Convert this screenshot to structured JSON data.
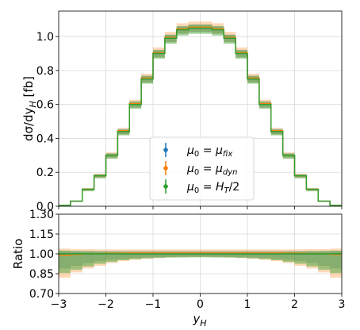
{
  "chart_data": [
    {
      "panel": "main",
      "type": "line",
      "step": true,
      "ylabel": "dσ/dy_H  [fb]",
      "xlim": [
        -3,
        3
      ],
      "ylim": [
        0,
        1.15
      ],
      "yticks": [
        0.0,
        0.2,
        0.4,
        0.6,
        0.8,
        1.0
      ],
      "ytick_labels": [
        "0.0",
        "0.2",
        "0.4",
        "0.6",
        "0.8",
        "1.0"
      ],
      "grid": true,
      "legend_position": "center-bottom",
      "bin_edges": [
        -3.0,
        -2.75,
        -2.5,
        -2.25,
        -2.0,
        -1.75,
        -1.5,
        -1.25,
        -1.0,
        -0.75,
        -0.5,
        -0.25,
        0.0,
        0.25,
        0.5,
        0.75,
        1.0,
        1.25,
        1.5,
        1.75,
        2.0,
        2.25,
        2.5,
        2.75,
        3.0
      ],
      "series": [
        {
          "name": "μ0 = μfix",
          "color": "#1f77b4",
          "values": [
            0.005,
            0.03,
            0.1,
            0.18,
            0.3,
            0.44,
            0.6,
            0.75,
            0.9,
            0.99,
            1.04,
            1.05,
            1.05,
            1.04,
            0.99,
            0.9,
            0.75,
            0.6,
            0.44,
            0.3,
            0.18,
            0.1,
            0.03,
            0.005
          ],
          "band_low": [
            0.004,
            0.028,
            0.095,
            0.172,
            0.288,
            0.425,
            0.582,
            0.73,
            0.878,
            0.968,
            1.018,
            1.028,
            1.028,
            1.018,
            0.968,
            0.878,
            0.73,
            0.582,
            0.425,
            0.288,
            0.172,
            0.095,
            0.028,
            0.004
          ],
          "band_high": [
            0.006,
            0.032,
            0.105,
            0.188,
            0.312,
            0.455,
            0.618,
            0.77,
            0.922,
            1.012,
            1.062,
            1.072,
            1.072,
            1.062,
            1.012,
            0.922,
            0.77,
            0.618,
            0.455,
            0.312,
            0.188,
            0.105,
            0.032,
            0.006
          ]
        },
        {
          "name": "μ0 = μdyn",
          "color": "#ff7f0e",
          "values": [
            0.005,
            0.03,
            0.1,
            0.18,
            0.3,
            0.445,
            0.605,
            0.755,
            0.905,
            0.995,
            1.045,
            1.055,
            1.055,
            1.045,
            0.995,
            0.905,
            0.755,
            0.605,
            0.445,
            0.3,
            0.18,
            0.1,
            0.03,
            0.005
          ],
          "band_low": [
            0.004,
            0.026,
            0.09,
            0.168,
            0.283,
            0.422,
            0.58,
            0.728,
            0.876,
            0.966,
            1.016,
            1.026,
            1.026,
            1.016,
            0.966,
            0.876,
            0.728,
            0.58,
            0.422,
            0.283,
            0.168,
            0.09,
            0.026,
            0.004
          ],
          "band_high": [
            0.006,
            0.033,
            0.108,
            0.192,
            0.318,
            0.462,
            0.628,
            0.782,
            0.936,
            1.028,
            1.078,
            1.088,
            1.088,
            1.078,
            1.028,
            0.936,
            0.782,
            0.628,
            0.462,
            0.318,
            0.192,
            0.108,
            0.033,
            0.006
          ]
        },
        {
          "name": "μ0 = HT/2",
          "color": "#2ca02c",
          "values": [
            0.005,
            0.03,
            0.1,
            0.18,
            0.3,
            0.44,
            0.6,
            0.75,
            0.9,
            0.99,
            1.04,
            1.05,
            1.05,
            1.04,
            0.99,
            0.9,
            0.75,
            0.6,
            0.44,
            0.3,
            0.18,
            0.1,
            0.03,
            0.005
          ],
          "band_low": [
            0.004,
            0.026,
            0.088,
            0.165,
            0.28,
            0.418,
            0.575,
            0.722,
            0.87,
            0.958,
            1.006,
            1.016,
            1.016,
            1.006,
            0.958,
            0.87,
            0.722,
            0.575,
            0.418,
            0.28,
            0.165,
            0.088,
            0.026,
            0.004
          ],
          "band_high": [
            0.006,
            0.032,
            0.104,
            0.186,
            0.31,
            0.452,
            0.616,
            0.768,
            0.92,
            1.01,
            1.06,
            1.07,
            1.07,
            1.06,
            1.01,
            0.92,
            0.768,
            0.616,
            0.452,
            0.31,
            0.186,
            0.104,
            0.032,
            0.006
          ]
        }
      ]
    },
    {
      "panel": "ratio",
      "type": "area",
      "step": true,
      "xlabel": "y_H",
      "ylabel": "Ratio",
      "xlim": [
        -3,
        3
      ],
      "ylim": [
        0.7,
        1.3
      ],
      "xticks": [
        -3,
        -2,
        -1,
        0,
        1,
        2,
        3
      ],
      "xtick_labels": [
        "−3",
        "−2",
        "−1",
        "0",
        "1",
        "2",
        "3"
      ],
      "yticks": [
        0.7,
        0.85,
        1.0,
        1.15,
        1.3
      ],
      "ytick_labels": [
        "0.70",
        "0.85",
        "1.00",
        "1.15",
        "1.30"
      ],
      "grid": true,
      "bin_edges": [
        -3.0,
        -2.75,
        -2.5,
        -2.25,
        -2.0,
        -1.75,
        -1.5,
        -1.25,
        -1.0,
        -0.75,
        -0.5,
        -0.25,
        0.0,
        0.25,
        0.5,
        0.75,
        1.0,
        1.25,
        1.5,
        1.75,
        2.0,
        2.25,
        2.5,
        2.75,
        3.0
      ],
      "series": [
        {
          "name": "μ0 = μfix",
          "color": "#1f77b4",
          "values": [
            1.0,
            1.0,
            1.0,
            1.0,
            1.0,
            1.0,
            1.0,
            1.0,
            1.0,
            1.0,
            1.0,
            1.0,
            1.0,
            1.0,
            1.0,
            1.0,
            1.0,
            1.0,
            1.0,
            1.0,
            1.0,
            1.0,
            1.0,
            1.0
          ],
          "band_low": [
            0.89,
            0.91,
            0.93,
            0.945,
            0.955,
            0.962,
            0.968,
            0.972,
            0.975,
            0.977,
            0.978,
            0.979,
            0.979,
            0.978,
            0.977,
            0.975,
            0.972,
            0.968,
            0.962,
            0.955,
            0.945,
            0.93,
            0.91,
            0.89
          ],
          "band_high": [
            1.02,
            1.02,
            1.021,
            1.021,
            1.022,
            1.022,
            1.022,
            1.022,
            1.022,
            1.022,
            1.022,
            1.022,
            1.022,
            1.022,
            1.022,
            1.022,
            1.022,
            1.022,
            1.022,
            1.022,
            1.021,
            1.021,
            1.02,
            1.02
          ]
        },
        {
          "name": "μ0 = μdyn",
          "color": "#ff7f0e",
          "values": [
            0.99,
            0.995,
            1.0,
            1.002,
            1.004,
            1.005,
            1.006,
            1.006,
            1.006,
            1.006,
            1.006,
            1.006,
            1.006,
            1.006,
            1.006,
            1.006,
            1.006,
            1.006,
            1.006,
            1.005,
            1.004,
            1.002,
            1.0,
            0.995
          ],
          "band_low": [
            0.82,
            0.86,
            0.89,
            0.91,
            0.93,
            0.945,
            0.955,
            0.962,
            0.968,
            0.972,
            0.974,
            0.975,
            0.975,
            0.974,
            0.972,
            0.968,
            0.962,
            0.955,
            0.945,
            0.93,
            0.91,
            0.89,
            0.86,
            0.82
          ],
          "band_high": [
            1.04,
            1.035,
            1.035,
            1.034,
            1.034,
            1.034,
            1.034,
            1.034,
            1.034,
            1.034,
            1.034,
            1.034,
            1.034,
            1.034,
            1.034,
            1.034,
            1.034,
            1.034,
            1.034,
            1.034,
            1.034,
            1.035,
            1.035,
            1.04
          ]
        },
        {
          "name": "μ0 = HT/2",
          "color": "#2ca02c",
          "values": [
            1.0,
            1.0,
            1.0,
            1.0,
            1.0,
            1.0,
            1.0,
            1.0,
            1.0,
            1.0,
            1.0,
            1.0,
            1.0,
            1.0,
            1.0,
            1.0,
            1.0,
            1.0,
            1.0,
            1.0,
            1.0,
            1.0,
            1.0,
            1.0
          ],
          "band_low": [
            0.855,
            0.88,
            0.905,
            0.925,
            0.94,
            0.952,
            0.96,
            0.966,
            0.97,
            0.972,
            0.973,
            0.974,
            0.974,
            0.973,
            0.972,
            0.97,
            0.966,
            0.96,
            0.952,
            0.94,
            0.925,
            0.905,
            0.88,
            0.855
          ],
          "band_high": [
            1.025,
            1.022,
            1.02,
            1.018,
            1.017,
            1.016,
            1.016,
            1.016,
            1.016,
            1.016,
            1.016,
            1.016,
            1.016,
            1.016,
            1.016,
            1.016,
            1.016,
            1.016,
            1.016,
            1.017,
            1.018,
            1.02,
            1.022,
            1.025
          ]
        }
      ]
    }
  ]
}
